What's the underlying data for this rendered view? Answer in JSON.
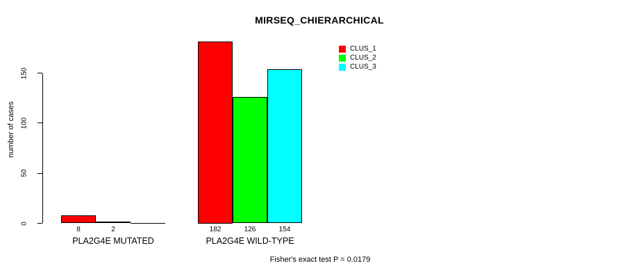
{
  "chart_data": {
    "type": "bar",
    "title": "MIRSEQ_CHIERARCHICAL",
    "xlabel": "",
    "ylabel": "number of cases",
    "categories": [
      "PLA2G4E MUTATED",
      "PLA2G4E WILD-TYPE"
    ],
    "series": [
      {
        "name": "CLUS_1",
        "color": "#ff0000",
        "values": [
          8,
          182
        ]
      },
      {
        "name": "CLUS_2",
        "color": "#00ff00",
        "values": [
          2,
          126
        ]
      },
      {
        "name": "CLUS_3",
        "color": "#00ffff",
        "values": [
          0,
          154
        ]
      }
    ],
    "ylim": [
      0,
      182
    ],
    "yticks": [
      0,
      50,
      100,
      150
    ],
    "grid": false,
    "legend_position": "top-right",
    "bar_value_labels_shown": [
      "8",
      "2",
      "182",
      "126",
      "154"
    ],
    "zero_value_labels_hidden": true,
    "annotation": "Fisher's exact test P = 0.0179",
    "colors": {
      "background": "#ffffff",
      "axis": "#000000",
      "bar_border": "#000000",
      "text": "#000000"
    }
  }
}
